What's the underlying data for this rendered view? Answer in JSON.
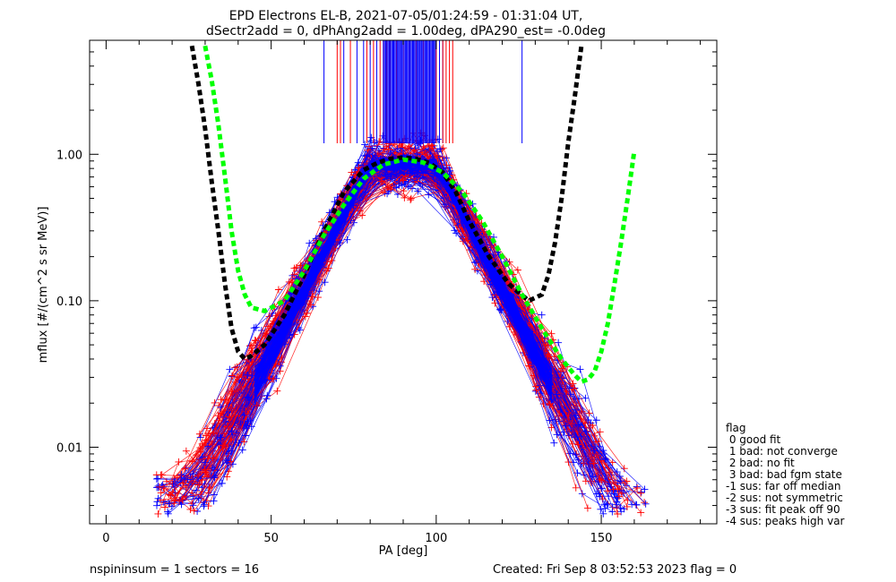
{
  "chart_data": {
    "type": "line",
    "title": "EPD Electrons EL-B, 2021-07-05/01:24:59 - 01:31:04 UT,",
    "subtitle": "dSectr2add = 0, dPhAng2add = 1.00deg, dPA290_est=  -0.0deg",
    "xlabel": "PA [deg]",
    "ylabel": "mflux [#/(cm^2 s sr MeV)]",
    "xlim": [
      -5,
      185
    ],
    "ylim": [
      0.003,
      6.0
    ],
    "yscale": "log",
    "x_ticks": [
      {
        "value": 0,
        "label": "0"
      },
      {
        "value": 50,
        "label": "50"
      },
      {
        "value": 100,
        "label": "100"
      },
      {
        "value": 150,
        "label": "150"
      }
    ],
    "y_ticks": [
      {
        "value": 0.01,
        "label": "0.01"
      },
      {
        "value": 0.1,
        "label": "0.10"
      },
      {
        "value": 1.0,
        "label": "1.00"
      }
    ],
    "fit_curves": [
      {
        "color": "#000000",
        "x": [
          26,
          28,
          30,
          32,
          34,
          36,
          38,
          40,
          42,
          44,
          48,
          54,
          60,
          66,
          72,
          78,
          82,
          86,
          90,
          94,
          98,
          102,
          106,
          110,
          116,
          122,
          128,
          132,
          134,
          136,
          138,
          140,
          142,
          144
        ],
        "y": [
          5.5,
          3.0,
          1.5,
          0.65,
          0.3,
          0.13,
          0.065,
          0.045,
          0.04,
          0.042,
          0.05,
          0.08,
          0.15,
          0.3,
          0.55,
          0.78,
          0.87,
          0.93,
          0.95,
          0.93,
          0.87,
          0.75,
          0.55,
          0.35,
          0.2,
          0.13,
          0.1,
          0.11,
          0.15,
          0.25,
          0.5,
          1.2,
          2.5,
          5.5
        ]
      },
      {
        "color": "#00ff00",
        "x": [
          30,
          32,
          34,
          36,
          38,
          40,
          42,
          44,
          48,
          54,
          60,
          66,
          72,
          78,
          84,
          90,
          96,
          102,
          108,
          114,
          120,
          126,
          132,
          138,
          142,
          144,
          146,
          148,
          150,
          152,
          154,
          156,
          158,
          160
        ],
        "y": [
          5.5,
          3.2,
          1.6,
          0.7,
          0.3,
          0.16,
          0.11,
          0.09,
          0.085,
          0.1,
          0.16,
          0.28,
          0.45,
          0.68,
          0.85,
          0.92,
          0.88,
          0.75,
          0.55,
          0.35,
          0.2,
          0.11,
          0.065,
          0.04,
          0.031,
          0.028,
          0.029,
          0.033,
          0.045,
          0.07,
          0.13,
          0.25,
          0.5,
          1.05
        ]
      }
    ],
    "rug_lines": {
      "blue": [
        66,
        72,
        76,
        78,
        80,
        82,
        84,
        85,
        86,
        87,
        88,
        89,
        90,
        91,
        92,
        93,
        94,
        95,
        96,
        97,
        98,
        99,
        100,
        101,
        102,
        126
      ],
      "red": [
        70,
        71,
        74,
        79,
        81,
        83,
        84,
        85,
        86,
        88,
        90,
        92,
        94,
        96,
        98,
        100,
        102,
        103,
        104,
        105
      ]
    },
    "legend": {
      "placement": "right",
      "entries": [
        "flag",
        " 0 good fit",
        " 1 bad: not converge",
        " 2 bad: no fit",
        " 3 bad: bad fgm state",
        "-1 sus: far off median",
        "-2 sus: not symmetric",
        "-3 sus: fit peak off 90",
        "-4 sus: peaks high var"
      ]
    },
    "grid": false
  },
  "footer": {
    "left": "nspininsum =  1  sectors = 16",
    "right": "Created: Fri Sep  8 03:52:53 2023   flag = 0"
  },
  "colors": {
    "series_blue": "#0000ff",
    "series_red": "#ff0000",
    "axes": "#000000"
  }
}
